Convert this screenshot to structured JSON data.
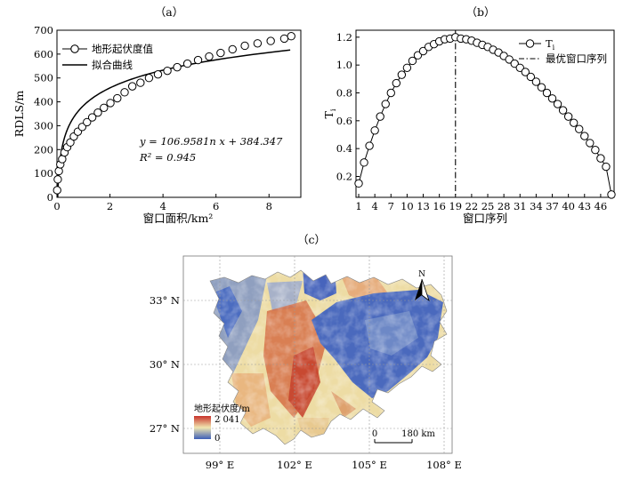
{
  "chart_data": [
    {
      "panel": "（a）",
      "type": "scatter",
      "xlabel": "窗口面积/km²",
      "ylabel": "RDLS/m",
      "xlim": [
        0,
        9.2
      ],
      "ylim": [
        0,
        700
      ],
      "xticks": [
        0,
        2,
        4,
        6,
        8
      ],
      "yticks": [
        0,
        100,
        200,
        300,
        400,
        500,
        600,
        700
      ],
      "series": [
        {
          "name": "地形起伏度值",
          "marker": "open-circle",
          "x": [
            0.008,
            0.031,
            0.071,
            0.126,
            0.197,
            0.284,
            0.386,
            0.504,
            0.638,
            0.788,
            0.953,
            1.134,
            1.331,
            1.544,
            1.772,
            2.016,
            2.276,
            2.552,
            2.843,
            3.15,
            3.473,
            3.811,
            4.166,
            4.536,
            4.922,
            5.323,
            5.741,
            6.174,
            6.623,
            7.088,
            7.568,
            8.064,
            8.576,
            8.838
          ],
          "y": [
            30,
            75,
            110,
            138,
            160,
            188,
            210,
            230,
            255,
            275,
            295,
            315,
            335,
            355,
            375,
            395,
            415,
            440,
            465,
            480,
            500,
            515,
            530,
            545,
            560,
            575,
            590,
            605,
            620,
            635,
            645,
            655,
            665,
            675
          ]
        },
        {
          "name": "拟合曲线",
          "type": "line",
          "formula": "y = 106.9581n x + 384.347"
        }
      ],
      "annotations": [
        "y = 106.9581n x + 384.347",
        "R² = 0.945"
      ]
    },
    {
      "panel": "（b）",
      "type": "line",
      "xlabel": "窗口序列",
      "ylabel": "Ti",
      "xlim": [
        0.5,
        48.5
      ],
      "ylim": [
        0.05,
        1.25
      ],
      "xticks": [
        1,
        4,
        7,
        10,
        13,
        16,
        19,
        22,
        25,
        28,
        31,
        34,
        37,
        40,
        43,
        46
      ],
      "yticks": [
        0.2,
        0.4,
        0.6,
        0.8,
        1.0,
        1.2
      ],
      "series": [
        {
          "name": "Ti",
          "marker": "open-circle",
          "x": [
            1,
            2,
            3,
            4,
            5,
            6,
            7,
            8,
            9,
            10,
            11,
            12,
            13,
            14,
            15,
            16,
            17,
            18,
            19,
            20,
            21,
            22,
            23,
            24,
            25,
            26,
            27,
            28,
            29,
            30,
            31,
            32,
            33,
            34,
            35,
            36,
            37,
            38,
            39,
            40,
            41,
            42,
            43,
            44,
            45,
            46,
            47,
            48
          ],
          "y": [
            0.15,
            0.3,
            0.42,
            0.53,
            0.63,
            0.72,
            0.8,
            0.87,
            0.93,
            0.98,
            1.03,
            1.07,
            1.1,
            1.13,
            1.15,
            1.17,
            1.185,
            1.19,
            1.2,
            1.19,
            1.185,
            1.175,
            1.16,
            1.145,
            1.13,
            1.11,
            1.09,
            1.065,
            1.04,
            1.01,
            0.98,
            0.95,
            0.915,
            0.88,
            0.84,
            0.8,
            0.76,
            0.72,
            0.675,
            0.63,
            0.585,
            0.54,
            0.49,
            0.44,
            0.39,
            0.33,
            0.27,
            0.07
          ]
        },
        {
          "name": "最优窗口序列",
          "type": "vline",
          "x": 19
        }
      ]
    }
  ],
  "map": {
    "panel": "（c）",
    "lat_labels": [
      "33° N",
      "30° N",
      "27° N"
    ],
    "lon_labels": [
      "99° E",
      "102° E",
      "105° E",
      "108° E"
    ],
    "north_label": "N",
    "legend_title": "地形起伏度/m",
    "legend_max": "2 041",
    "legend_min": "0",
    "scale_start": "0",
    "scale_end": "180 km",
    "colors": {
      "low": "#3d5fb8",
      "mid": "#f1e6b0",
      "high": "#c8322a"
    }
  }
}
